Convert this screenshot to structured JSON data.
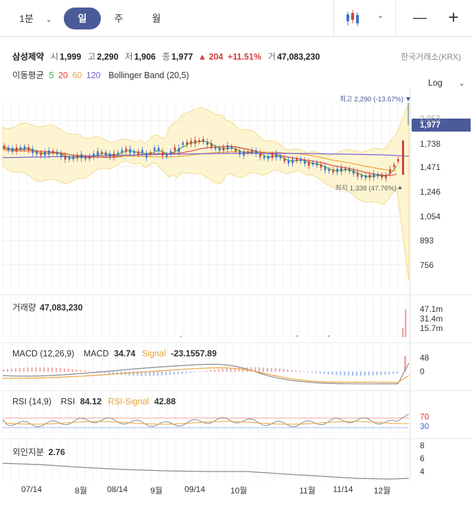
{
  "periods": [
    {
      "label": "1분",
      "has_dropdown": true,
      "active": false
    },
    {
      "label": "일",
      "active": true
    },
    {
      "label": "주",
      "active": false
    },
    {
      "label": "월",
      "active": false
    }
  ],
  "toolbar": {
    "chart_type_icon": "candlestick-icon",
    "zoom_out": "—",
    "zoom_in": "+"
  },
  "stock": {
    "name": "삼성제약",
    "open_label": "시",
    "open": "1,999",
    "high_label": "고",
    "high": "2,290",
    "low_label": "저",
    "low": "1,906",
    "close_label": "종",
    "close": "1,977",
    "change": "▲ 204",
    "change_pct": "+11.51%",
    "volume_label": "거",
    "volume": "47,083,230",
    "exchange": "한국거래소(KRX)"
  },
  "indicators": {
    "ma_label": "이동평균",
    "ma_periods": [
      {
        "value": "5",
        "color": "#3cae3c"
      },
      {
        "value": "20",
        "color": "#e0453a"
      },
      {
        "value": "60",
        "color": "#e8a23a"
      },
      {
        "value": "120",
        "color": "#7b5cd6"
      }
    ],
    "bb_label": "Bollinger Band (20,5)"
  },
  "scale": {
    "log_label": "Log"
  },
  "chart_data": {
    "type": "candlestick",
    "y_axis_ticks": [
      "2,053",
      "1,738",
      "1,471",
      "1,246",
      "1,054",
      "893",
      "756"
    ],
    "current_price": "1,977",
    "high_marker": "최고 2,290 (-13.67%)",
    "low_marker": "최지 1,338 (47.76%)",
    "x_axis_ticks": [
      "07/14",
      "8월",
      "08/14",
      "9월",
      "09/14",
      "10월",
      "11월",
      "11/14",
      "12월"
    ],
    "colors": {
      "up": "#d1403a",
      "down": "#3d6fd1",
      "band": "#fdf3c9",
      "ma5": "#3cae3c",
      "ma20": "#e0453a",
      "ma60": "#e8a23a",
      "ma120": "#7b5cd6"
    },
    "volume": {
      "label": "거래량",
      "value": "47,083,230",
      "ticks": [
        "47.1m",
        "31.4m",
        "15.7m"
      ]
    },
    "macd": {
      "label": "MACD (12,26,9)",
      "macd_label": "MACD",
      "macd_value": "34.74",
      "signal_label": "Signal",
      "signal_value": "-23.1557.89",
      "ticks": [
        "48",
        "0"
      ]
    },
    "rsi": {
      "label": "RSI (14,9)",
      "rsi_label": "RSI",
      "rsi_value": "84.12",
      "signal_label": "RSI-Signal",
      "signal_value": "42.88",
      "ticks": [
        "70",
        "30"
      ]
    },
    "foreign": {
      "label": "외인지분",
      "value": "2.76",
      "ticks": [
        "8",
        "6",
        "4"
      ]
    }
  }
}
